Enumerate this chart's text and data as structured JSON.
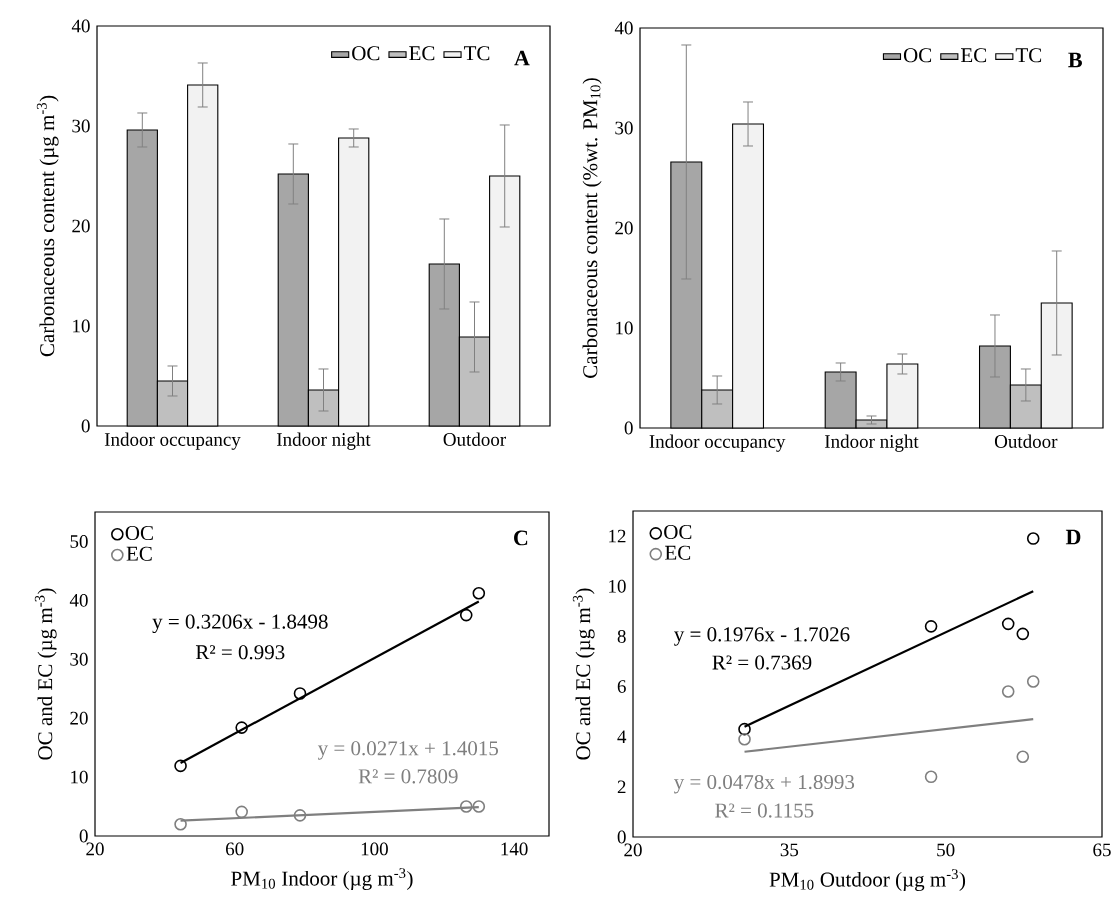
{
  "chart_data": [
    {
      "type": "bar",
      "ylabel": "Carbonaceous content (µg m$^{-3}$)",
      "categories": [
        "Indoor occupancy",
        "Indoor night",
        "Outdoor"
      ],
      "ylim": [
        0,
        40
      ],
      "yticks": [
        0,
        10,
        20,
        30,
        40
      ],
      "legend": "top right",
      "annotations": [
        "A"
      ],
      "series": [
        {
          "name": "OC",
          "color": "#a6a6a6",
          "values": [
            29.6,
            25.2,
            16.2
          ],
          "errors": [
            1.7,
            3.0,
            4.5
          ]
        },
        {
          "name": "EC",
          "color": "#bfbfbf",
          "values": [
            4.5,
            3.6,
            8.9
          ],
          "errors": [
            1.5,
            2.1,
            3.5
          ]
        },
        {
          "name": "TC",
          "color": "#f2f2f2",
          "values": [
            34.1,
            28.8,
            25.0
          ],
          "errors": [
            2.2,
            0.9,
            5.1
          ]
        }
      ]
    },
    {
      "type": "bar",
      "ylabel": "Carbonaceous content (%wt. PM$_{10}$)",
      "categories": [
        "Indoor occupancy",
        "Indoor night",
        "Outdoor"
      ],
      "ylim": [
        0,
        40
      ],
      "yticks": [
        0,
        10,
        20,
        30,
        40
      ],
      "legend": "top right",
      "annotations": [
        "B"
      ],
      "series": [
        {
          "name": "OC",
          "color": "#a6a6a6",
          "values": [
            26.6,
            5.6,
            8.2
          ],
          "errors": [
            11.7,
            0.9,
            3.1
          ]
        },
        {
          "name": "EC",
          "color": "#bfbfbf",
          "values": [
            3.8,
            0.8,
            4.3
          ],
          "errors": [
            1.4,
            0.4,
            1.6
          ]
        },
        {
          "name": "TC",
          "color": "#f2f2f2",
          "values": [
            30.4,
            6.4,
            12.5
          ],
          "errors": [
            2.2,
            1.0,
            5.2
          ]
        }
      ]
    },
    {
      "type": "scatter",
      "xlabel": "PM$_{10}$ Indoor (µg m$^{-3}$)",
      "ylabel": "OC and EC (µg m$^{-3}$)",
      "xlim": [
        20,
        150
      ],
      "xticks": [
        20,
        60,
        100,
        140
      ],
      "ylim": [
        0,
        55
      ],
      "yticks": [
        0,
        10,
        20,
        30,
        40,
        50
      ],
      "legend": "top left",
      "marker": "circle",
      "annotations": [
        "C",
        "y = 0.3206x - 1.8498",
        "R² = 0.993",
        "y = 0.0271x + 1.4015",
        "R² = 0.7809"
      ],
      "series": [
        {
          "name": "OC",
          "color": "#000000",
          "x": [
            44.5,
            62.0,
            78.7,
            126.3,
            129.9
          ],
          "values": [
            11.9,
            18.4,
            24.2,
            37.5,
            41.2
          ]
        },
        {
          "name": "EC",
          "color": "#7f7f7f",
          "x": [
            44.5,
            62.0,
            78.7,
            126.3,
            129.9
          ],
          "values": [
            2.0,
            4.1,
            3.5,
            5.0,
            5.0
          ]
        },
        {
          "type": "line",
          "marker": "none",
          "color": "#000000",
          "x": [
            44.5,
            129.9
          ],
          "values": [
            12.4,
            39.8
          ]
        },
        {
          "type": "line",
          "marker": "none",
          "color": "#7f7f7f",
          "x": [
            44.5,
            129.9
          ],
          "values": [
            2.6,
            4.9
          ]
        }
      ]
    },
    {
      "type": "scatter",
      "xlabel": "PM$_{10}$ Outdoor (µg m$^{-3}$)",
      "ylabel": "OC and EC (µg m$^{-3}$)",
      "xlim": [
        20,
        65
      ],
      "xticks": [
        20,
        35,
        50,
        65
      ],
      "ylim": [
        0,
        13
      ],
      "yticks": [
        0,
        2,
        4,
        6,
        8,
        10,
        12
      ],
      "legend": "top left",
      "marker": "circle",
      "annotations": [
        "D",
        "y = 0.1976x - 1.7026",
        "R² = 0.7369",
        "y = 0.0478x + 1.8993",
        "R² = 0.1155"
      ],
      "series": [
        {
          "name": "OC",
          "color": "#000000",
          "x": [
            30.7,
            48.6,
            56.0,
            57.4,
            58.4
          ],
          "values": [
            4.3,
            8.4,
            8.5,
            8.1,
            11.9
          ]
        },
        {
          "name": "EC",
          "color": "#7f7f7f",
          "x": [
            30.7,
            48.6,
            56.0,
            57.4,
            58.4
          ],
          "values": [
            3.9,
            2.4,
            5.8,
            3.2,
            6.2
          ]
        },
        {
          "type": "line",
          "marker": "none",
          "color": "#000000",
          "x": [
            30.7,
            58.4
          ],
          "values": [
            4.4,
            9.8
          ]
        },
        {
          "type": "line",
          "marker": "none",
          "color": "#7f7f7f",
          "x": [
            30.7,
            58.4
          ],
          "values": [
            3.4,
            4.7
          ]
        }
      ]
    }
  ]
}
